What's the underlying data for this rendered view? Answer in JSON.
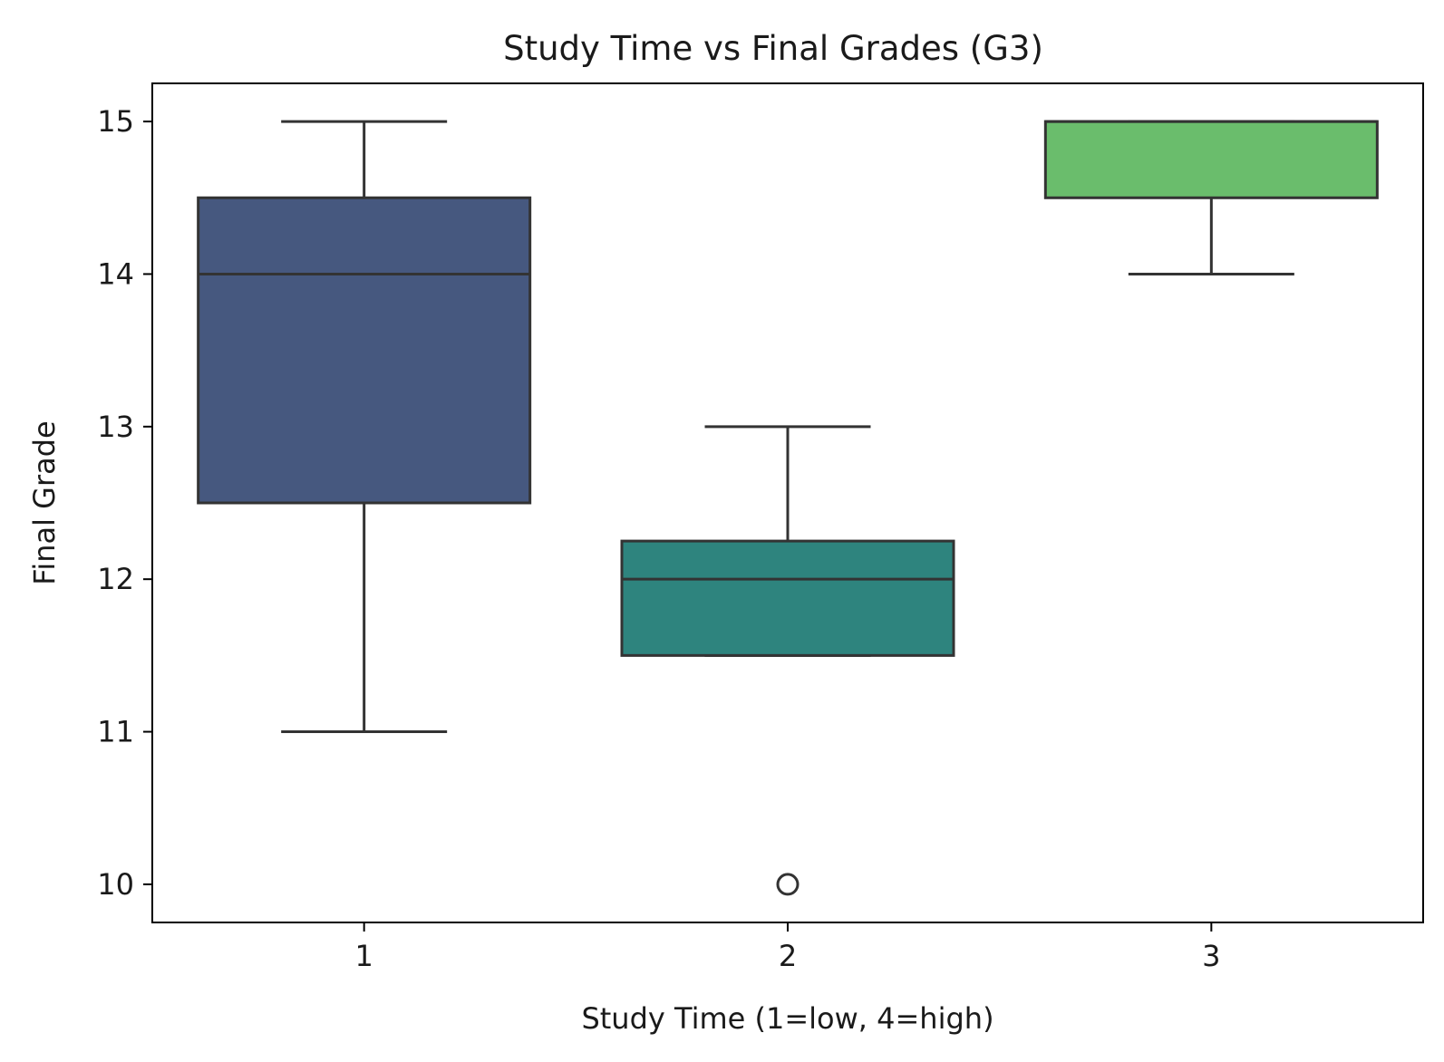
{
  "chart_data": {
    "type": "box",
    "title": "Study Time vs Final Grades (G3)",
    "xlabel": "Study Time (1=low, 4=high)",
    "ylabel": "Final Grade",
    "ylim": [
      9.75,
      15.25
    ],
    "yticks": [
      "10",
      "11",
      "12",
      "13",
      "14",
      "15"
    ],
    "categories": [
      "1",
      "2",
      "3"
    ],
    "boxes": [
      {
        "category": "1",
        "whisker_low": 11,
        "q1": 12.5,
        "median": 14,
        "q3": 14.5,
        "whisker_high": 15,
        "outliers": [],
        "color": "#46587f"
      },
      {
        "category": "2",
        "whisker_low": 11.5,
        "q1": 11.5,
        "median": 12,
        "q3": 12.25,
        "whisker_high": 13,
        "outliers": [
          10
        ],
        "color": "#2e847e"
      },
      {
        "category": "3",
        "whisker_low": 14,
        "q1": 14.5,
        "median": 15,
        "q3": 15,
        "whisker_high": 15,
        "outliers": [],
        "color": "#6abd6c"
      }
    ],
    "grid": false,
    "legend": "none"
  }
}
